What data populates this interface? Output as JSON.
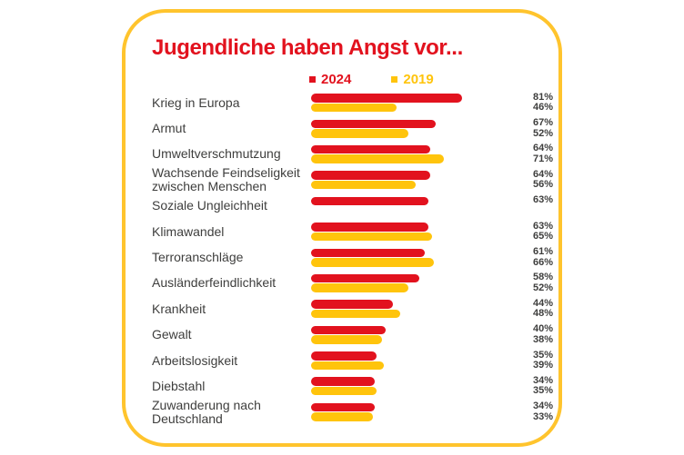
{
  "colors": {
    "red": "#E2121E",
    "yellow": "#FFC40C",
    "card_border": "#FFC42D",
    "text": "#3E3E3D",
    "background": "#FFFFFF"
  },
  "card": {
    "title": "Jugendliche haben Angst vor..."
  },
  "chart_data": {
    "type": "bar",
    "orientation": "horizontal",
    "title": "Jugendliche haben Angst vor...",
    "value_suffix": "%",
    "xlim": [
      0,
      100
    ],
    "grid": false,
    "legend_position": "top",
    "categories": [
      "Krieg in Europa",
      "Armut",
      "Umweltverschmutzung",
      "Wachsende Feindseligkeit\nzwischen Menschen",
      "Soziale Ungleichheit",
      "Klimawandel",
      "Terroranschläge",
      "Ausländerfeindlichkeit",
      "Krankheit",
      "Gewalt",
      "Arbeitslosigkeit",
      "Diebstahl",
      "Zuwanderung nach\nDeutschland"
    ],
    "series": [
      {
        "name": "2024",
        "color": "#E2121E",
        "values": [
          81,
          67,
          64,
          64,
          63,
          63,
          61,
          58,
          44,
          40,
          35,
          34,
          34
        ]
      },
      {
        "name": "2019",
        "color": "#FFC40C",
        "values": [
          46,
          52,
          71,
          56,
          null,
          65,
          66,
          52,
          48,
          38,
          39,
          35,
          33
        ]
      }
    ]
  }
}
